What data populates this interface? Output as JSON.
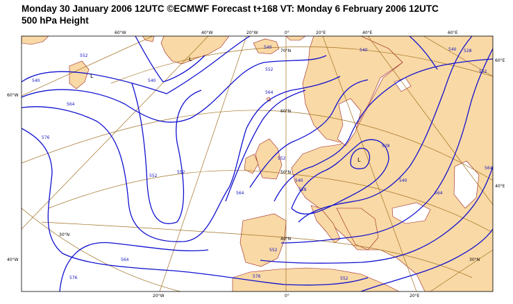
{
  "title_line1": "Monday 30 January 2006 12UTC ©ECMWF Forecast t+168 VT: Monday 6 February 2006 12UTC",
  "title_line2": "500 hPa Height",
  "colors": {
    "land": "#f9d9a5",
    "sea": "#ffffff",
    "contour": "#1010d0",
    "graticule": "#a07020",
    "coast": "#9a2020"
  },
  "graticule_top": [
    "60°W",
    "40°W",
    "20°W",
    "0°",
    "20°E",
    "40°E",
    "60°E"
  ],
  "graticule_bottom": [
    "20°W",
    "0°",
    "20°E"
  ],
  "graticule_left": [
    "60°W",
    "40°W"
  ],
  "graticule_right": [
    "60°E",
    "40°E"
  ],
  "latitude_labels": [
    "70°N",
    "60°N",
    "50°N",
    "40°N",
    "30°N",
    "30°N"
  ],
  "contour_labels": [
    "540",
    "540",
    "540",
    "552",
    "552",
    "552",
    "564",
    "564",
    "564",
    "576",
    "576",
    "528",
    "528",
    "540",
    "552",
    "564",
    "540",
    "528",
    "540",
    "552",
    "564",
    "552",
    "576",
    "552",
    "564",
    "552",
    "540"
  ],
  "low_symbols": [
    "L",
    "L",
    "L"
  ]
}
